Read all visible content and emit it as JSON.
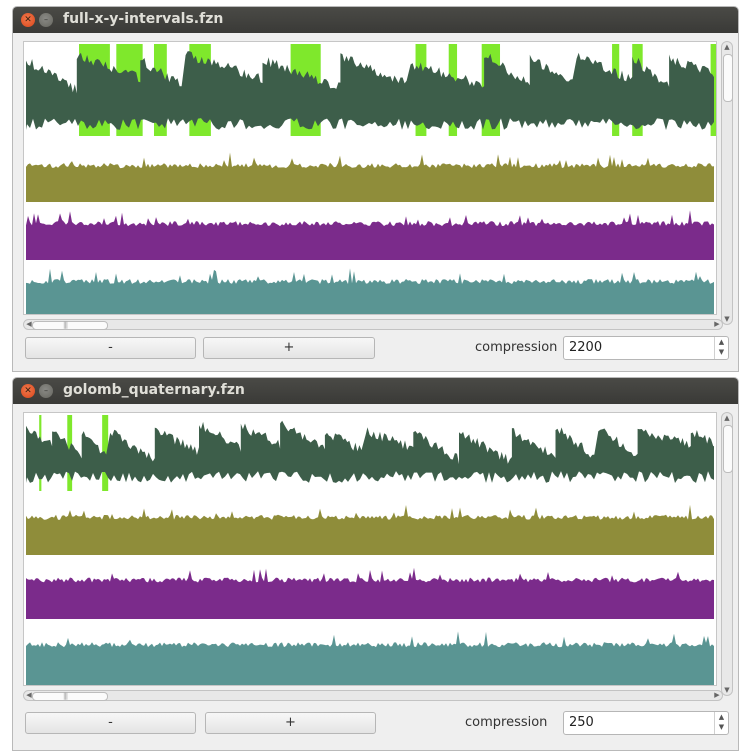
{
  "windows": [
    {
      "title": "full-x-y-intervals.fzn",
      "minus_label": "-",
      "plus_label": "+",
      "compression_label": "compression",
      "compression_value": "2200",
      "tracks": [
        {
          "name": "dark-green-sawtooth",
          "color": "#3d5e4a"
        },
        {
          "name": "olive",
          "color": "#8f8d3a"
        },
        {
          "name": "purple",
          "color": "#7b2b8b"
        },
        {
          "name": "teal",
          "color": "#5a9593"
        }
      ],
      "highlight_color": "#7fe82c"
    },
    {
      "title": "golomb_quaternary.fzn",
      "minus_label": "-",
      "plus_label": "+",
      "compression_label": "compression",
      "compression_value": "250",
      "tracks": [
        {
          "name": "dark-green-sawtooth",
          "color": "#3d5e4a"
        },
        {
          "name": "olive",
          "color": "#8f8d3a"
        },
        {
          "name": "purple",
          "color": "#7b2b8b"
        },
        {
          "name": "teal",
          "color": "#5a9593"
        }
      ],
      "highlight_color": "#7fe82c"
    }
  ],
  "icons": {
    "close": "close-icon",
    "minimize": "minimize-icon"
  }
}
